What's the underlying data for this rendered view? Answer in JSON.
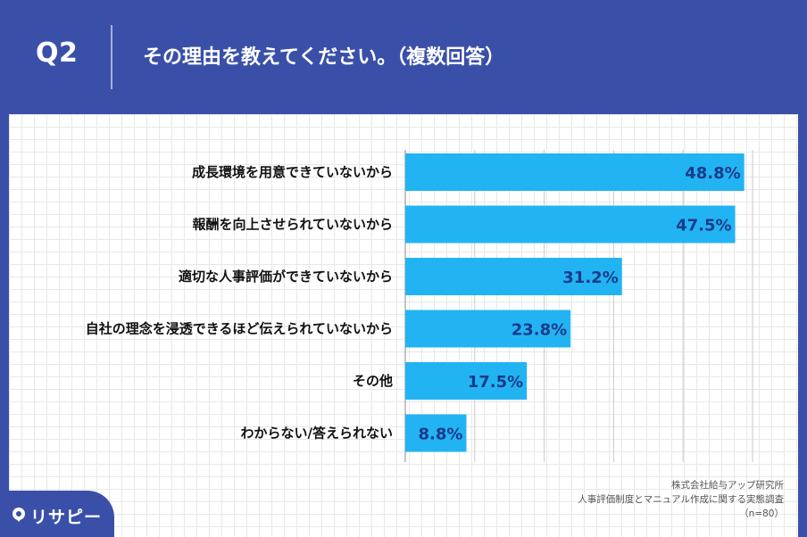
{
  "header": {
    "question_number": "Q2",
    "question_text": "その理由を教えてください。（複数回答）"
  },
  "chart_data": {
    "type": "bar",
    "orientation": "horizontal",
    "categories": [
      "成長環境を用意できていないから",
      "報酬を向上させられていないから",
      "適切な人事評価ができていないから",
      "自社の理念を浸透できるほど伝えられていないから",
      "その他",
      "わからない/答えられない"
    ],
    "values": [
      48.8,
      47.5,
      31.2,
      23.8,
      17.5,
      8.8
    ],
    "value_labels": [
      "48.8%",
      "47.5%",
      "31.2%",
      "23.8%",
      "17.5%",
      "8.8%"
    ],
    "xlim": [
      0,
      50
    ],
    "bar_color": "#22b4f2",
    "label_color": "#1a3a8a",
    "grid": true
  },
  "footer": {
    "line1": "株式会社給与アップ研究所",
    "line2": "人事評価制度とマニュアル作成に関する実態調査",
    "line3": "（n=80）"
  },
  "logo": {
    "text": "リサピー"
  },
  "colors": {
    "background": "#3a50a8",
    "card": "#ffffff"
  }
}
